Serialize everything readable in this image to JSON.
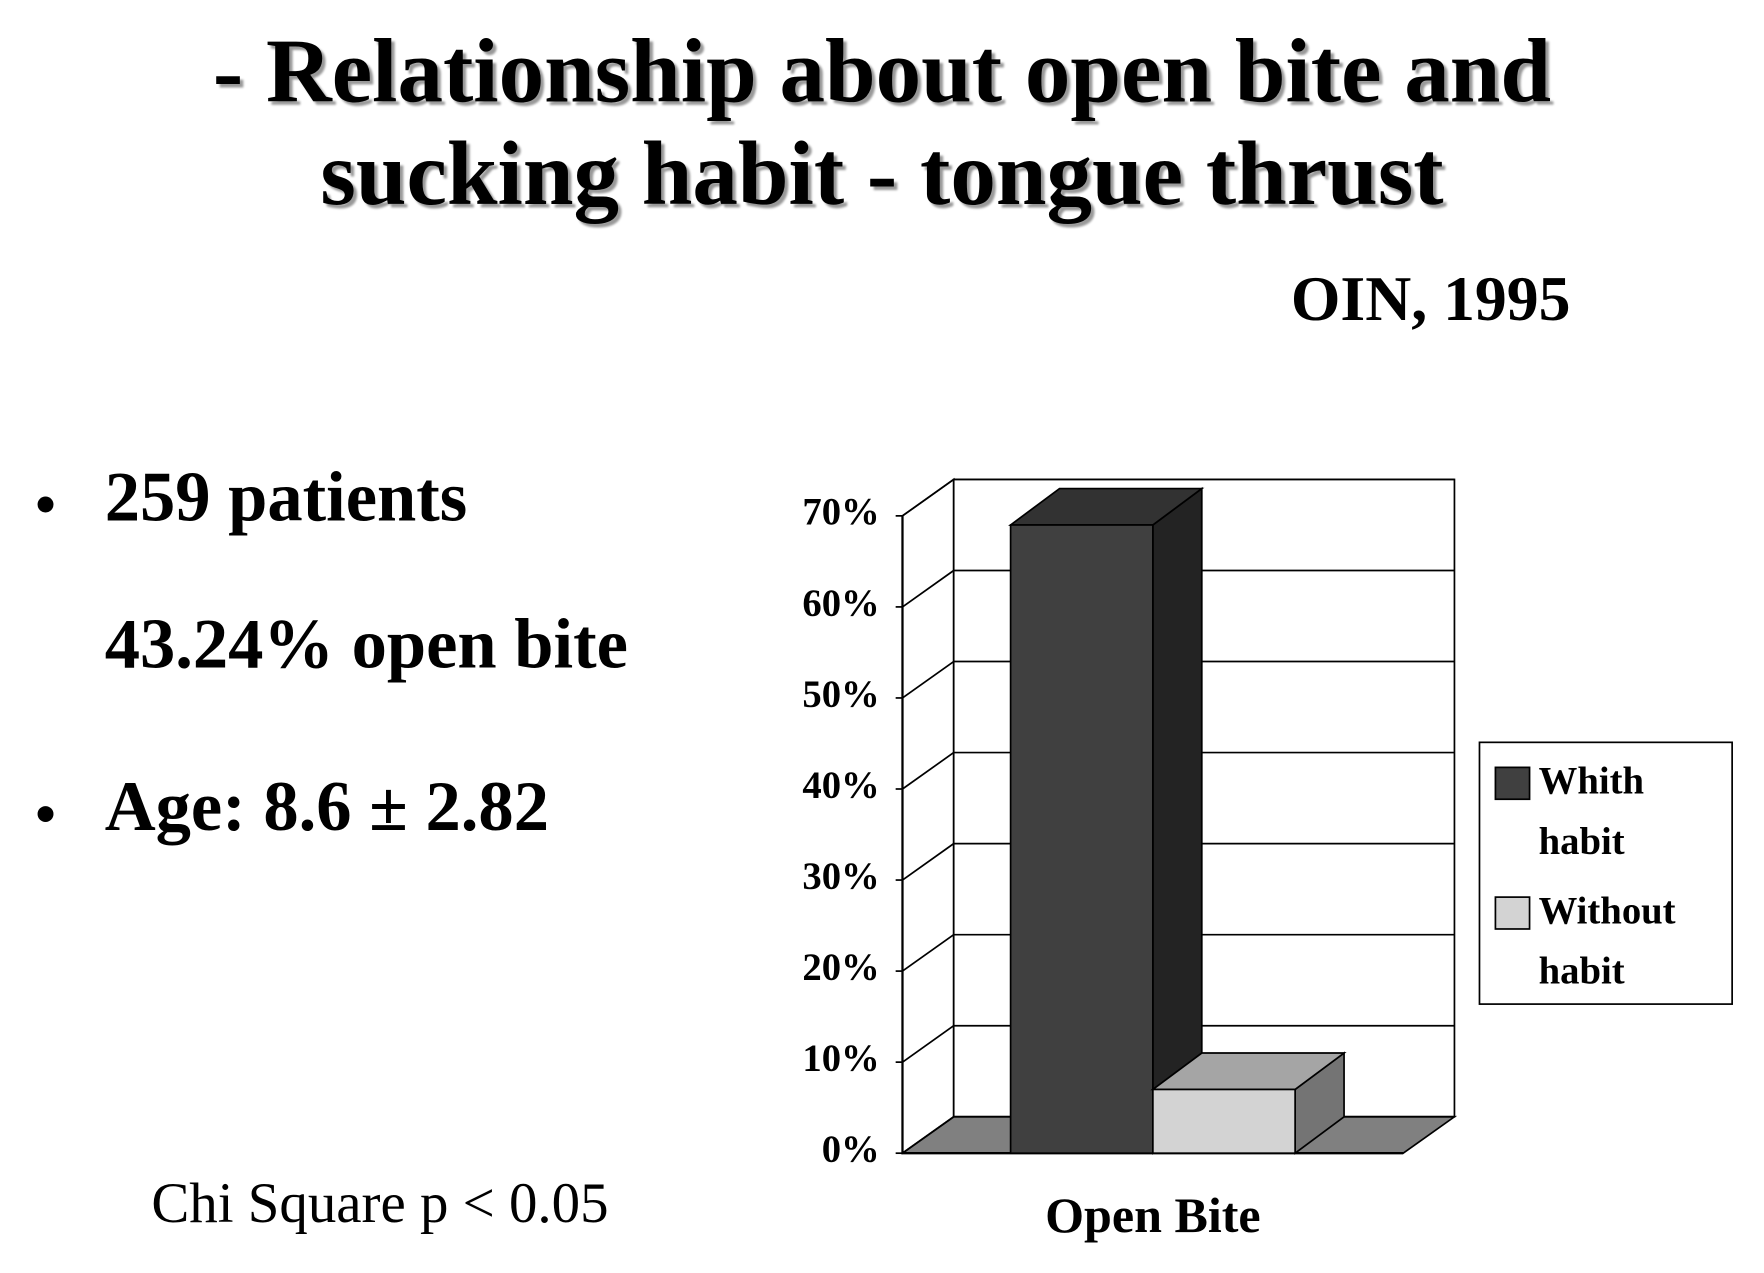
{
  "title": "- Relationship about open bite and sucking habit - tongue thrust",
  "citation": "OIN, 1995",
  "items": [
    "259 patients",
    "43.24% open bite",
    "Age: 8.6 ± 2.82"
  ],
  "note": "Chi Square p < 0.05",
  "chart_data": {
    "type": "bar3d",
    "categories": [
      "Open Bite"
    ],
    "series": [
      {
        "name": "Whith habit",
        "color": "#404040",
        "values": [
          69
        ]
      },
      {
        "name": "Without habit",
        "color": "#d3d3d3",
        "values": [
          7
        ]
      }
    ],
    "ylim": [
      0,
      70
    ],
    "yticks": [
      {
        "value": 0,
        "label": "0%"
      },
      {
        "value": 10,
        "label": "10%"
      },
      {
        "value": 20,
        "label": "20%"
      },
      {
        "value": 30,
        "label": "30%"
      },
      {
        "value": 40,
        "label": "40%"
      },
      {
        "value": 50,
        "label": "50%"
      },
      {
        "value": 60,
        "label": "60%"
      },
      {
        "value": 70,
        "label": "70%"
      }
    ],
    "grid": true,
    "legend": "right"
  }
}
